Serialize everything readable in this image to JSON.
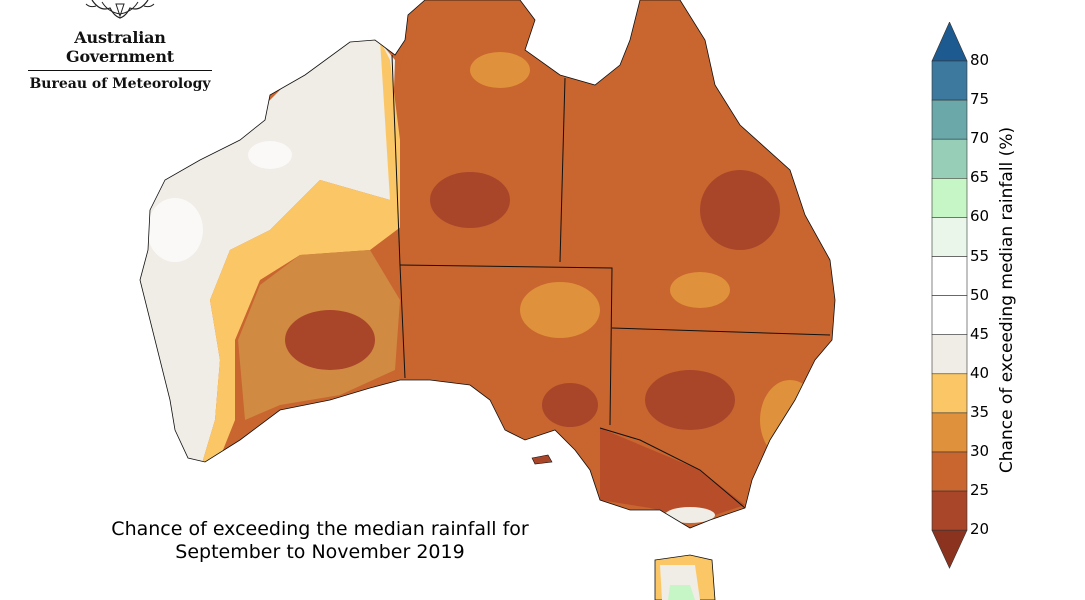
{
  "logo": {
    "gov_name": "Australian Government",
    "bureau_name": "Bureau of Meteorology",
    "crest_icon": "coat-of-arms-icon"
  },
  "map": {
    "caption_line1": "Chance of exceeding the median rainfall for",
    "caption_line2": "September to November 2019",
    "region_fill": {
      "west_coast_interior": "#f0ece6",
      "pilbara": "#fbc766",
      "central_wa": "#d08a42",
      "nt_top_end": "#c9652f",
      "nt_south": "#c9652f",
      "qld": "#c9652f",
      "sa": "#c9652f",
      "nsw": "#c9652f",
      "vic": "#b84e29",
      "tas_coast": "#fbc766"
    }
  },
  "colorbar": {
    "title": "Chance of exceeding median rainfall (%)",
    "tick_labels": [
      "80",
      "75",
      "70",
      "65",
      "60",
      "55",
      "50",
      "45",
      "40",
      "35",
      "30",
      "25",
      "20"
    ],
    "colors": [
      "#1d5a8f",
      "#3d789f",
      "#6aa8aa",
      "#97ceb7",
      "#c6f6c6",
      "#e9f6e9",
      "#ffffff",
      "#ffffff",
      "#f0ece6",
      "#fbc766",
      "#e0913b",
      "#c9652f",
      "#a9462a",
      "#8c3320"
    ]
  }
}
